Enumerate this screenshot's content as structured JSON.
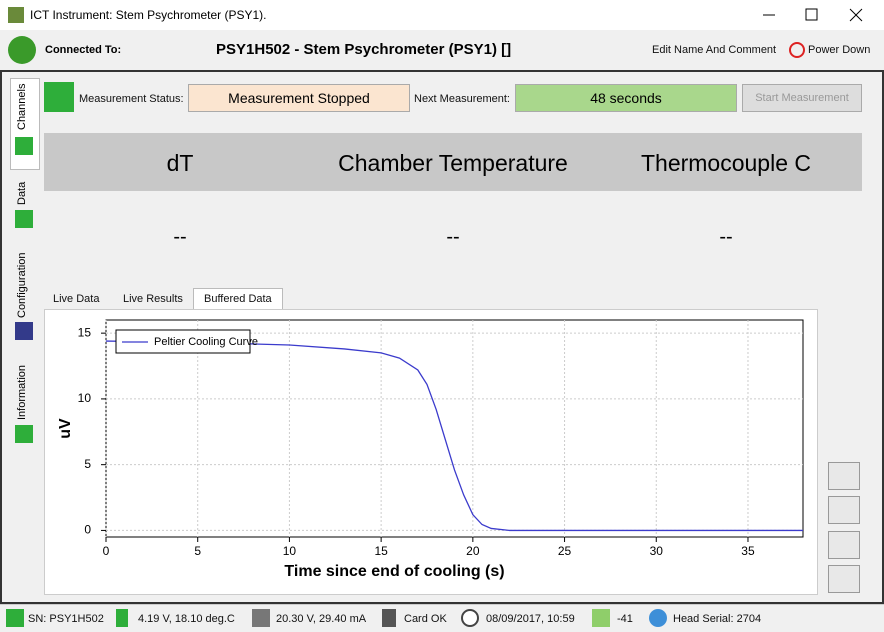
{
  "window": {
    "title": "ICT Instrument: Stem Psychrometer (PSY1)."
  },
  "header": {
    "connected_label": "Connected To:",
    "device": "PSY1H502 - Stem Psychrometer (PSY1) []",
    "edit": "Edit Name And Comment",
    "power": "Power Down"
  },
  "side_tabs": [
    "Channels",
    "Data",
    "Configuration",
    "Information"
  ],
  "status": {
    "measurement_label": "Measurement Status:",
    "measurement_value": "Measurement Stopped",
    "next_label": "Next Measurement:",
    "next_value": "48 seconds",
    "start_button": "Start Measurement"
  },
  "readings": {
    "columns": [
      "dT",
      "Chamber Temperature",
      "Thermocouple C"
    ],
    "values": [
      "--",
      "--",
      "--"
    ]
  },
  "chart_tabs": [
    "Live Data",
    "Live Results",
    "Buffered Data"
  ],
  "chart_data": {
    "type": "line",
    "xlabel": "Time since end of cooling (s)",
    "ylabel": "uV",
    "x": [
      0,
      5,
      10,
      13,
      15,
      16,
      17,
      17.5,
      18,
      18.5,
      19,
      19.5,
      20,
      20.5,
      21,
      22,
      38
    ],
    "series": [
      {
        "name": "Peltier Cooling Curve",
        "color": "#3b3bcc",
        "values": [
          14.4,
          14.3,
          14.1,
          13.8,
          13.5,
          13.1,
          12.2,
          11.1,
          9.2,
          6.9,
          4.6,
          2.7,
          1.2,
          0.45,
          0.15,
          0,
          0
        ]
      }
    ],
    "xlim": [
      0,
      38
    ],
    "ylim": [
      -0.5,
      16
    ],
    "xticks": [
      0,
      5,
      10,
      15,
      20,
      25,
      30,
      35
    ],
    "yticks": [
      0,
      5,
      10,
      15
    ],
    "grid": true,
    "legend": "upper left"
  },
  "status_bar": [
    "SN: PSY1H502",
    "4.19 V, 18.10 deg.C",
    "20.30 V, 29.40 mA",
    "Card OK",
    "08/09/2017, 10:59",
    "-41",
    "Head Serial: 2704"
  ]
}
